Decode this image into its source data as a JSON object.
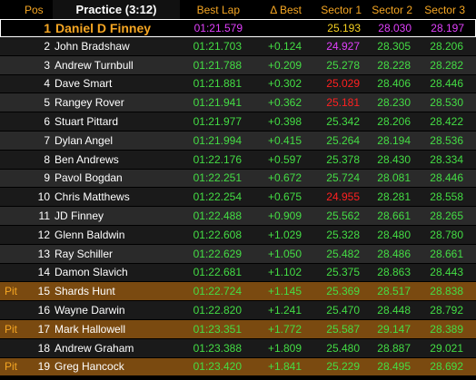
{
  "header": {
    "pos": "Pos",
    "title": "Practice (3:12)",
    "best_lap": "Best Lap",
    "delta_best": "Δ Best",
    "sector1": "Sector 1",
    "sector2": "Sector 2",
    "sector3": "Sector 3"
  },
  "colors": {
    "personal_best": "#44dd44",
    "overall_best": "#e040fb",
    "leader_sector": "#f5d020",
    "slow_sector": "#ff2020",
    "pit_row": "#7a4a10",
    "header_text": "#f5a623"
  },
  "rows": [
    {
      "status": "",
      "pos": "1",
      "name": "Daniel D Finney",
      "best": "01:21.579",
      "delta": "",
      "s1": "25.193",
      "s2": "28.030",
      "s3": "28.197",
      "c1": "y",
      "c2": "p",
      "c3": "p",
      "type": "leader"
    },
    {
      "status": "",
      "pos": "2",
      "name": "John Bradshaw",
      "best": "01:21.703",
      "delta": "+0.124",
      "s1": "24.927",
      "s2": "28.305",
      "s3": "28.206",
      "c1": "p",
      "c2": "g",
      "c3": "g",
      "type": "odd"
    },
    {
      "status": "",
      "pos": "3",
      "name": "Andrew Turnbull",
      "best": "01:21.788",
      "delta": "+0.209",
      "s1": "25.278",
      "s2": "28.228",
      "s3": "28.282",
      "c1": "g",
      "c2": "g",
      "c3": "g",
      "type": "even"
    },
    {
      "status": "",
      "pos": "4",
      "name": "Dave Smart",
      "best": "01:21.881",
      "delta": "+0.302",
      "s1": "25.029",
      "s2": "28.406",
      "s3": "28.446",
      "c1": "r",
      "c2": "g",
      "c3": "g",
      "type": "odd"
    },
    {
      "status": "",
      "pos": "5",
      "name": "Rangey Rover",
      "best": "01:21.941",
      "delta": "+0.362",
      "s1": "25.181",
      "s2": "28.230",
      "s3": "28.530",
      "c1": "r",
      "c2": "g",
      "c3": "g",
      "type": "even"
    },
    {
      "status": "",
      "pos": "6",
      "name": "Stuart Pittard",
      "best": "01:21.977",
      "delta": "+0.398",
      "s1": "25.342",
      "s2": "28.206",
      "s3": "28.422",
      "c1": "g",
      "c2": "g",
      "c3": "g",
      "type": "odd"
    },
    {
      "status": "",
      "pos": "7",
      "name": "Dylan Angel",
      "best": "01:21.994",
      "delta": "+0.415",
      "s1": "25.264",
      "s2": "28.194",
      "s3": "28.536",
      "c1": "g",
      "c2": "g",
      "c3": "g",
      "type": "even"
    },
    {
      "status": "",
      "pos": "8",
      "name": "Ben Andrews",
      "best": "01:22.176",
      "delta": "+0.597",
      "s1": "25.378",
      "s2": "28.430",
      "s3": "28.334",
      "c1": "g",
      "c2": "g",
      "c3": "g",
      "type": "odd"
    },
    {
      "status": "",
      "pos": "9",
      "name": "Pavol Bogdan",
      "best": "01:22.251",
      "delta": "+0.672",
      "s1": "25.724",
      "s2": "28.081",
      "s3": "28.446",
      "c1": "g",
      "c2": "g",
      "c3": "g",
      "type": "even"
    },
    {
      "status": "",
      "pos": "10",
      "name": "Chris Matthews",
      "best": "01:22.254",
      "delta": "+0.675",
      "s1": "24.955",
      "s2": "28.281",
      "s3": "28.558",
      "c1": "r",
      "c2": "g",
      "c3": "g",
      "type": "odd"
    },
    {
      "status": "",
      "pos": "11",
      "name": "JD Finney",
      "best": "01:22.488",
      "delta": "+0.909",
      "s1": "25.562",
      "s2": "28.661",
      "s3": "28.265",
      "c1": "g",
      "c2": "g",
      "c3": "g",
      "type": "even"
    },
    {
      "status": "",
      "pos": "12",
      "name": "Glenn Baldwin",
      "best": "01:22.608",
      "delta": "+1.029",
      "s1": "25.328",
      "s2": "28.480",
      "s3": "28.780",
      "c1": "g",
      "c2": "g",
      "c3": "g",
      "type": "odd"
    },
    {
      "status": "",
      "pos": "13",
      "name": "Ray Schiller",
      "best": "01:22.629",
      "delta": "+1.050",
      "s1": "25.482",
      "s2": "28.486",
      "s3": "28.661",
      "c1": "g",
      "c2": "g",
      "c3": "g",
      "type": "even"
    },
    {
      "status": "",
      "pos": "14",
      "name": "Damon Slavich",
      "best": "01:22.681",
      "delta": "+1.102",
      "s1": "25.375",
      "s2": "28.863",
      "s3": "28.443",
      "c1": "g",
      "c2": "g",
      "c3": "g",
      "type": "odd"
    },
    {
      "status": "Pit",
      "pos": "15",
      "name": "Shards Hunt",
      "best": "01:22.724",
      "delta": "+1.145",
      "s1": "25.369",
      "s2": "28.517",
      "s3": "28.838",
      "c1": "g",
      "c2": "g",
      "c3": "g",
      "type": "pit"
    },
    {
      "status": "",
      "pos": "16",
      "name": "Wayne Darwin",
      "best": "01:22.820",
      "delta": "+1.241",
      "s1": "25.470",
      "s2": "28.448",
      "s3": "28.792",
      "c1": "g",
      "c2": "g",
      "c3": "g",
      "type": "odd"
    },
    {
      "status": "Pit",
      "pos": "17",
      "name": "Mark Hallowell",
      "best": "01:23.351",
      "delta": "+1.772",
      "s1": "25.587",
      "s2": "29.147",
      "s3": "28.389",
      "c1": "g",
      "c2": "g",
      "c3": "g",
      "type": "pit"
    },
    {
      "status": "",
      "pos": "18",
      "name": "Andrew Graham",
      "best": "01:23.388",
      "delta": "+1.809",
      "s1": "25.480",
      "s2": "28.887",
      "s3": "29.021",
      "c1": "g",
      "c2": "g",
      "c3": "g",
      "type": "odd"
    },
    {
      "status": "Pit",
      "pos": "19",
      "name": "Greg Hancock",
      "best": "01:23.420",
      "delta": "+1.841",
      "s1": "25.229",
      "s2": "28.495",
      "s3": "28.692",
      "c1": "g",
      "c2": "g",
      "c3": "g",
      "type": "pit"
    }
  ]
}
